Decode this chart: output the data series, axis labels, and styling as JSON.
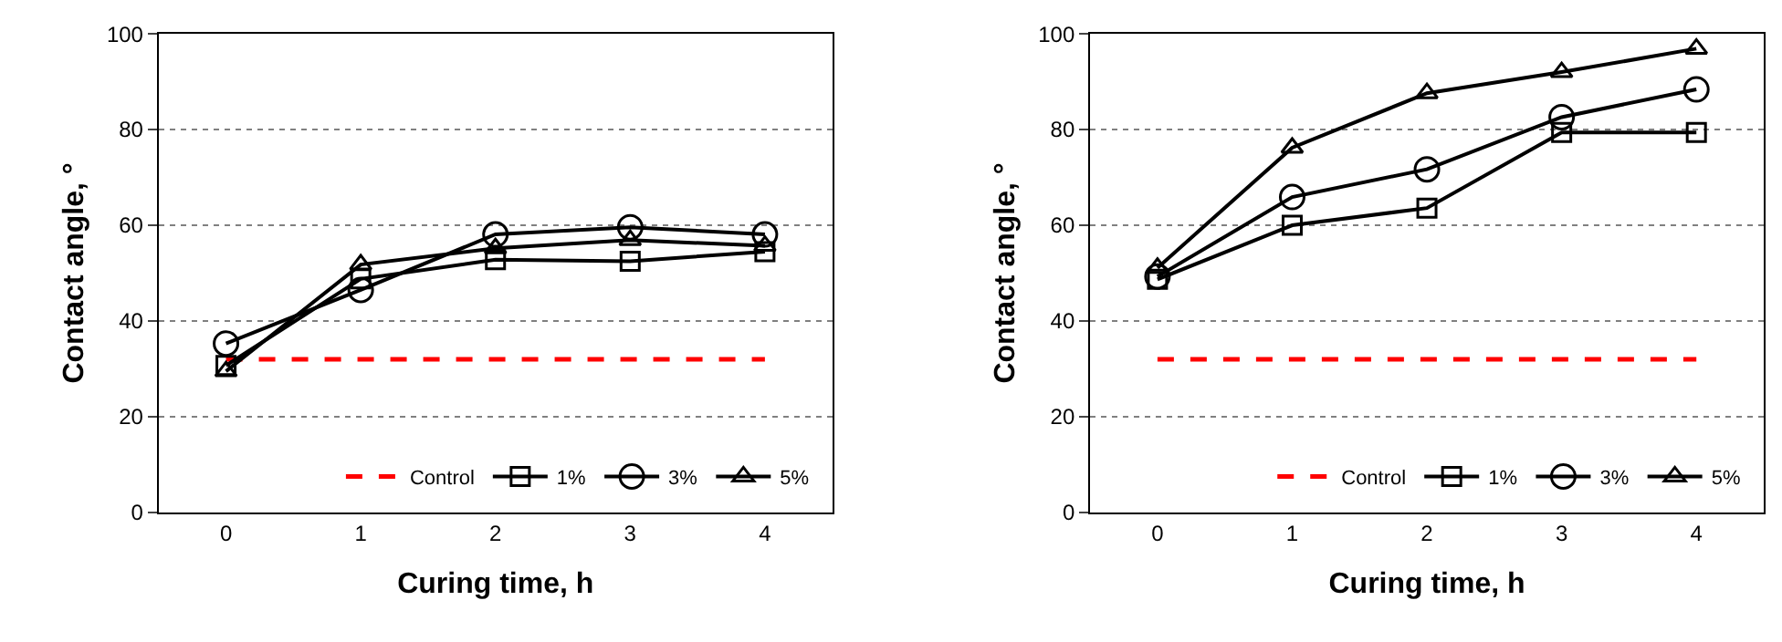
{
  "chart_data": [
    {
      "type": "line",
      "xlabel": "Curing time, h",
      "ylabel": "Contact angle, °",
      "categories": [
        "0",
        "1",
        "2",
        "3",
        "4"
      ],
      "ylim": [
        0,
        100
      ],
      "yticks": [
        0,
        20,
        40,
        60,
        80,
        100
      ],
      "grid": "y",
      "legend": "bottom right",
      "series": [
        {
          "name": "Control",
          "color": "#ff0000",
          "values": [
            32,
            32,
            32,
            32,
            32
          ],
          "marker": "none",
          "line_style": "dashed"
        },
        {
          "name": "1%",
          "color": "#000000",
          "values": [
            30.7,
            48.8,
            52.8,
            52.5,
            54.5
          ],
          "marker": "square",
          "line_style": "solid"
        },
        {
          "name": "3%",
          "color": "#000000",
          "values": [
            35.3,
            46.5,
            58.1,
            59.6,
            58.1
          ],
          "marker": "circle",
          "line_style": "solid"
        },
        {
          "name": "5%",
          "color": "#000000",
          "values": [
            29.5,
            51.8,
            55.2,
            56.9,
            55.7
          ],
          "marker": "triangle",
          "line_style": "solid"
        }
      ]
    },
    {
      "type": "line",
      "xlabel": "Curing time, h",
      "ylabel": "Contact angle, °",
      "categories": [
        "0",
        "1",
        "2",
        "3",
        "4"
      ],
      "ylim": [
        0,
        100
      ],
      "yticks": [
        0,
        20,
        40,
        60,
        80,
        100
      ],
      "grid": "y",
      "legend": "bottom right",
      "series": [
        {
          "name": "Control",
          "color": "#ff0000",
          "values": [
            32,
            32,
            32,
            32,
            32
          ],
          "marker": "none",
          "line_style": "dashed"
        },
        {
          "name": "1%",
          "color": "#000000",
          "values": [
            48.7,
            60,
            63.6,
            79.4,
            79.4
          ],
          "marker": "square",
          "line_style": "solid"
        },
        {
          "name": "3%",
          "color": "#000000",
          "values": [
            49.3,
            65.9,
            71.7,
            82.6,
            88.4
          ],
          "marker": "circle",
          "line_style": "solid"
        },
        {
          "name": "5%",
          "color": "#000000",
          "values": [
            51.1,
            76.2,
            87.6,
            92,
            96.9
          ],
          "marker": "triangle",
          "line_style": "solid"
        }
      ]
    }
  ]
}
